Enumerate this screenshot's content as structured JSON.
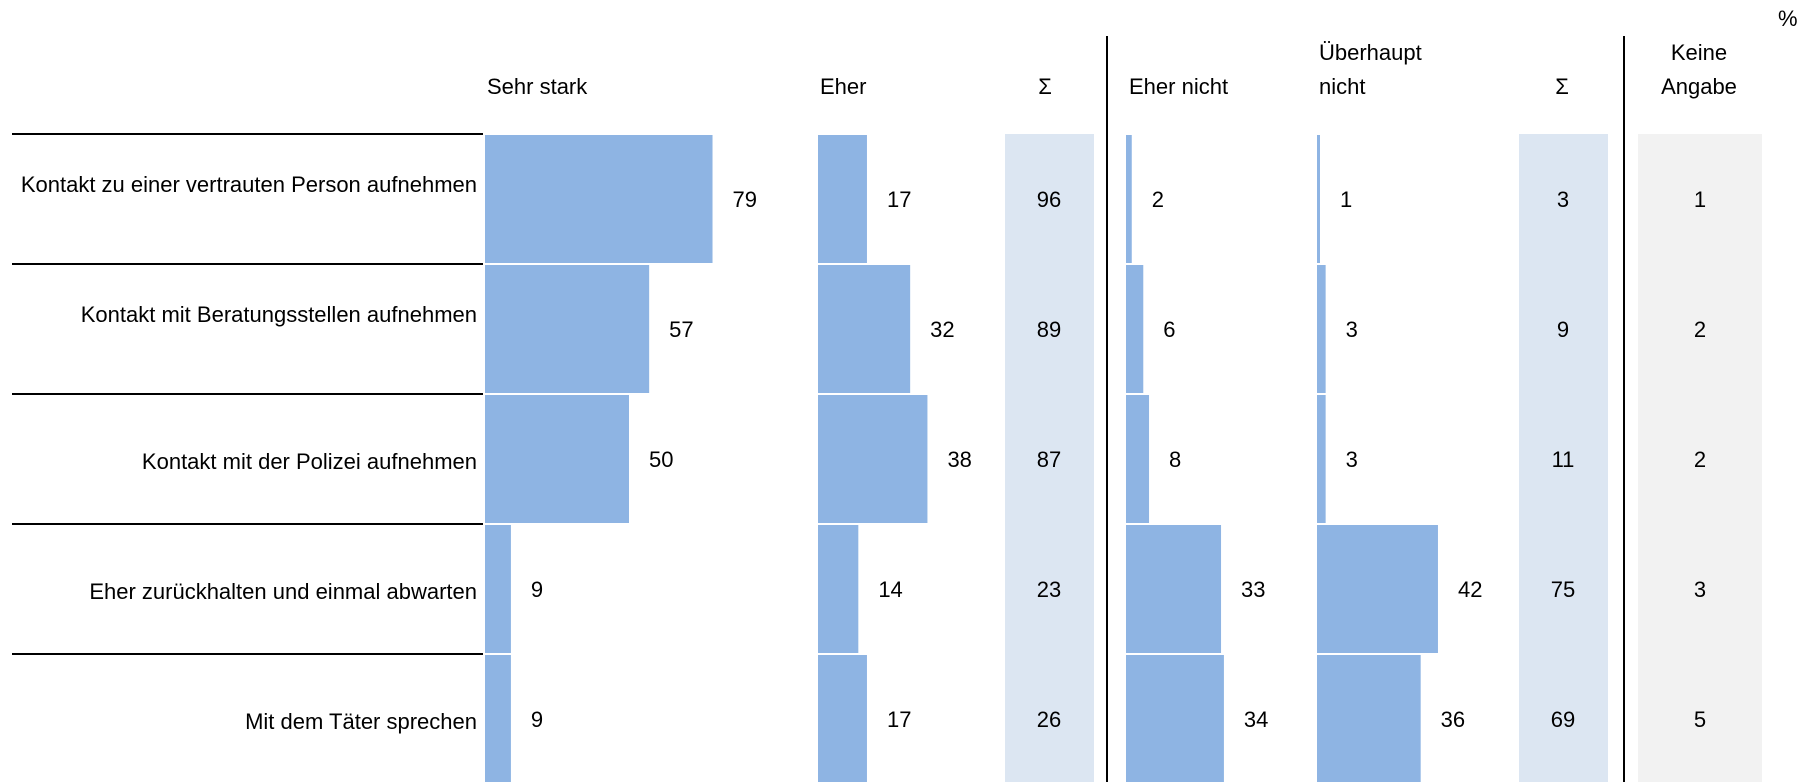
{
  "unit_label": "%",
  "colors": {
    "bar": "#8EB4E3",
    "sum_bg": "#DCE6F2",
    "none_bg": "#F2F2F2",
    "divider": "#000000"
  },
  "chart_data": {
    "type": "bar",
    "orientation": "horizontal",
    "categories": [
      "Kontakt zu einer vertrauten Person aufnehmen",
      "Kontakt mit Beratungsstellen aufnehmen",
      "Kontakt mit der Polizei aufnehmen",
      "Eher zurückhalten und einmal abwarten",
      "Mit dem Täter sprechen"
    ],
    "series": [
      {
        "name": "Sehr stark",
        "values": [
          79,
          57,
          50,
          9,
          9
        ]
      },
      {
        "name": "Eher",
        "values": [
          17,
          32,
          38,
          14,
          17
        ]
      },
      {
        "name": "Eher nicht",
        "values": [
          2,
          6,
          8,
          33,
          34
        ]
      },
      {
        "name": "Überhaupt nicht",
        "values": [
          1,
          3,
          3,
          42,
          36
        ]
      }
    ],
    "sums_positive": {
      "name": "Σ",
      "values": [
        96,
        89,
        87,
        23,
        26
      ]
    },
    "sums_negative": {
      "name": "Σ",
      "values": [
        3,
        9,
        11,
        75,
        69
      ]
    },
    "no_answer": {
      "name": "Keine Angabe",
      "values": [
        1,
        2,
        2,
        3,
        5
      ]
    },
    "headers": {
      "sehr_stark": "Sehr stark",
      "eher": "Eher",
      "sum_pos": "Σ",
      "eher_nicht": "Eher nicht",
      "ueberhaupt_1": "Überhaupt",
      "ueberhaupt_2": "nicht",
      "sum_neg": "Σ",
      "keine_1": "Keine",
      "keine_2": "Angabe"
    },
    "xlim": [
      0,
      100
    ],
    "grid": false
  }
}
